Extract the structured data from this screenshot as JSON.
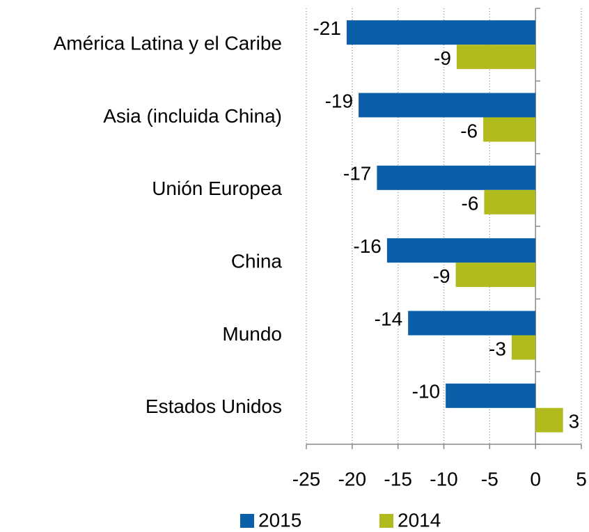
{
  "chart_data": {
    "type": "hbar",
    "categories": [
      "América Latina y el Caribe",
      "Asia (incluida China)",
      "Unión Europea",
      "China",
      "Mundo",
      "Estados Unidos"
    ],
    "series": [
      {
        "name": "2015",
        "color": "#0b5ea8",
        "values": [
          -20.6,
          -19.3,
          -17.3,
          -16.2,
          -13.9,
          -9.8
        ],
        "value_labels": [
          "-21",
          "-19",
          "-17",
          "-16",
          "-14",
          "-10"
        ]
      },
      {
        "name": "2014",
        "color": "#b2bb1e",
        "values": [
          -8.6,
          -5.7,
          -5.6,
          -8.7,
          -2.6,
          3.0
        ],
        "value_labels": [
          "-9",
          "-6",
          "-6",
          "-9",
          "-3",
          "3"
        ]
      }
    ],
    "xlim": [
      -25,
      5
    ],
    "xticks": [
      -25,
      -20,
      -15,
      -10,
      -5,
      0,
      5
    ],
    "grid": true,
    "legend": "bottom"
  }
}
